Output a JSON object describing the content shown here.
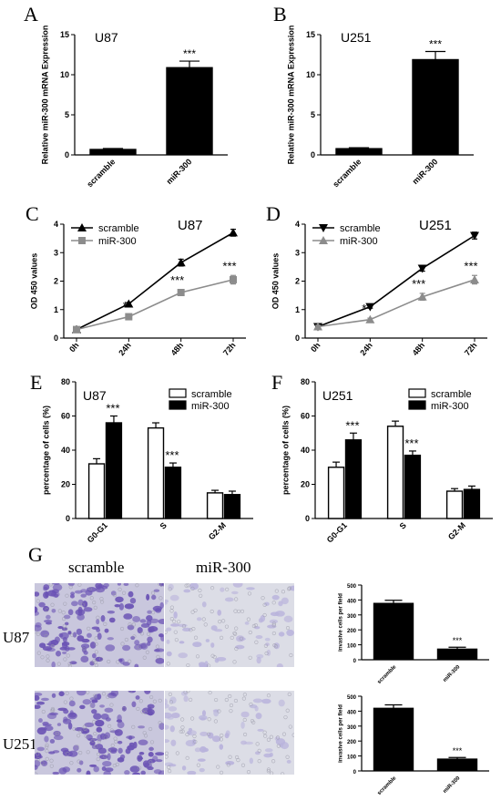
{
  "panels": {
    "A": "A",
    "B": "B",
    "C": "C",
    "D": "D",
    "E": "E",
    "F": "F",
    "G": "G"
  },
  "image_labels": {
    "col_scramble": "scramble",
    "col_mir": "miR-300",
    "row_u87": "U87",
    "row_u251": "U251"
  },
  "colors": {
    "black": "#000000",
    "gray": "#8c8c8c",
    "stain_dense": "#6a52b4",
    "stain_light": "#b9b3dc",
    "background_dense": "#c9c7dd",
    "background_light": "#dcdde6"
  },
  "chart_data": [
    {
      "id": "A",
      "type": "bar",
      "title": "U87",
      "ylabel": "Relative miR-300 mRNA Expression",
      "categories": [
        "scramble",
        "miR-300"
      ],
      "values": [
        0.7,
        10.9
      ],
      "errors": [
        0.1,
        0.8
      ],
      "ylim": [
        0,
        15
      ],
      "yticks": [
        0,
        5,
        10,
        15
      ],
      "annotations": [
        {
          "category": "miR-300",
          "text": "***"
        }
      ]
    },
    {
      "id": "B",
      "type": "bar",
      "title": "U251",
      "ylabel": "Relative miR-300 mRNA Expression",
      "categories": [
        "scramble",
        "miR-300"
      ],
      "values": [
        0.8,
        11.9
      ],
      "errors": [
        0.1,
        1.0
      ],
      "ylim": [
        0,
        15
      ],
      "yticks": [
        0,
        5,
        10,
        15
      ],
      "annotations": [
        {
          "category": "miR-300",
          "text": "***"
        }
      ]
    },
    {
      "id": "C",
      "type": "line",
      "title": "U87",
      "ylabel": "OD 450 values",
      "x": [
        "0h",
        "24h",
        "48h",
        "72h"
      ],
      "ylim": [
        0,
        4
      ],
      "yticks": [
        0,
        1,
        2,
        3,
        4
      ],
      "legend": "top-left",
      "series": [
        {
          "name": "scramble",
          "values": [
            0.3,
            1.2,
            2.65,
            3.7
          ],
          "errors": [
            0.03,
            0.05,
            0.12,
            0.12
          ],
          "color": "#000000",
          "marker": "triangle-up"
        },
        {
          "name": "miR-300",
          "values": [
            0.3,
            0.75,
            1.6,
            2.05
          ],
          "errors": [
            0.03,
            0.05,
            0.1,
            0.15
          ],
          "color": "#8c8c8c",
          "marker": "square"
        }
      ],
      "annotations": [
        {
          "x": "24h",
          "text": "*"
        },
        {
          "x": "48h",
          "text": "***"
        },
        {
          "x": "72h",
          "text": "***"
        }
      ]
    },
    {
      "id": "D",
      "type": "line",
      "title": "U251",
      "ylabel": "OD 450 values",
      "x": [
        "0h",
        "24h",
        "48h",
        "72h"
      ],
      "ylim": [
        0,
        4
      ],
      "yticks": [
        0,
        1,
        2,
        3,
        4
      ],
      "legend": "top-left",
      "series": [
        {
          "name": "scramble",
          "values": [
            0.4,
            1.1,
            2.45,
            3.6
          ],
          "errors": [
            0.05,
            0.05,
            0.1,
            0.12
          ],
          "color": "#000000",
          "marker": "triangle-down"
        },
        {
          "name": "miR-300",
          "values": [
            0.4,
            0.65,
            1.45,
            2.05
          ],
          "errors": [
            0.05,
            0.05,
            0.12,
            0.15
          ],
          "color": "#8c8c8c",
          "marker": "triangle-up"
        }
      ],
      "annotations": [
        {
          "x": "24h",
          "text": "**"
        },
        {
          "x": "48h",
          "text": "***"
        },
        {
          "x": "72h",
          "text": "***"
        }
      ]
    },
    {
      "id": "E",
      "type": "bar",
      "title": "U87",
      "ylabel": "percentage of cells (%)",
      "categories": [
        "G0-G1",
        "S",
        "G2-M"
      ],
      "ylim": [
        0,
        80
      ],
      "yticks": [
        0,
        20,
        40,
        60,
        80
      ],
      "legend": "top-right",
      "series": [
        {
          "name": "scramble",
          "values": [
            32,
            53,
            15
          ],
          "errors": [
            3,
            3,
            1.5
          ],
          "fill": "#ffffff"
        },
        {
          "name": "miR-300",
          "values": [
            56,
            30,
            14
          ],
          "errors": [
            4,
            2.5,
            2
          ],
          "fill": "#000000"
        }
      ],
      "annotations": [
        {
          "category": "G0-G1",
          "text": "***"
        },
        {
          "category": "S",
          "text": "***"
        }
      ]
    },
    {
      "id": "F",
      "type": "bar",
      "title": "U251",
      "ylabel": "percentage of cells (%)",
      "categories": [
        "G0-G1",
        "S",
        "G2-M"
      ],
      "ylim": [
        0,
        80
      ],
      "yticks": [
        0,
        20,
        40,
        60,
        80
      ],
      "legend": "top-right",
      "series": [
        {
          "name": "scramble",
          "values": [
            30,
            54,
            16
          ],
          "errors": [
            3,
            3,
            1.5
          ],
          "fill": "#ffffff"
        },
        {
          "name": "miR-300",
          "values": [
            46,
            37,
            17
          ],
          "errors": [
            4,
            2.5,
            2
          ],
          "fill": "#000000"
        }
      ],
      "annotations": [
        {
          "category": "G0-G1",
          "text": "***"
        },
        {
          "category": "S",
          "text": "***"
        }
      ]
    },
    {
      "id": "G1",
      "type": "bar",
      "title": "",
      "ylabel": "invasive cells per field",
      "categories": [
        "scramble",
        "miR-300"
      ],
      "values": [
        378,
        72
      ],
      "errors": [
        20,
        12
      ],
      "ylim": [
        0,
        500
      ],
      "yticks": [
        0,
        100,
        200,
        300,
        400,
        500
      ],
      "annotations": [
        {
          "category": "miR-300",
          "text": "***"
        }
      ]
    },
    {
      "id": "G2",
      "type": "bar",
      "title": "",
      "ylabel": "invasive cells per field",
      "categories": [
        "scramble",
        "miR-300"
      ],
      "values": [
        420,
        80
      ],
      "errors": [
        22,
        10
      ],
      "ylim": [
        0,
        500
      ],
      "yticks": [
        0,
        100,
        200,
        300,
        400,
        500
      ],
      "annotations": [
        {
          "category": "miR-300",
          "text": "***"
        }
      ]
    }
  ]
}
